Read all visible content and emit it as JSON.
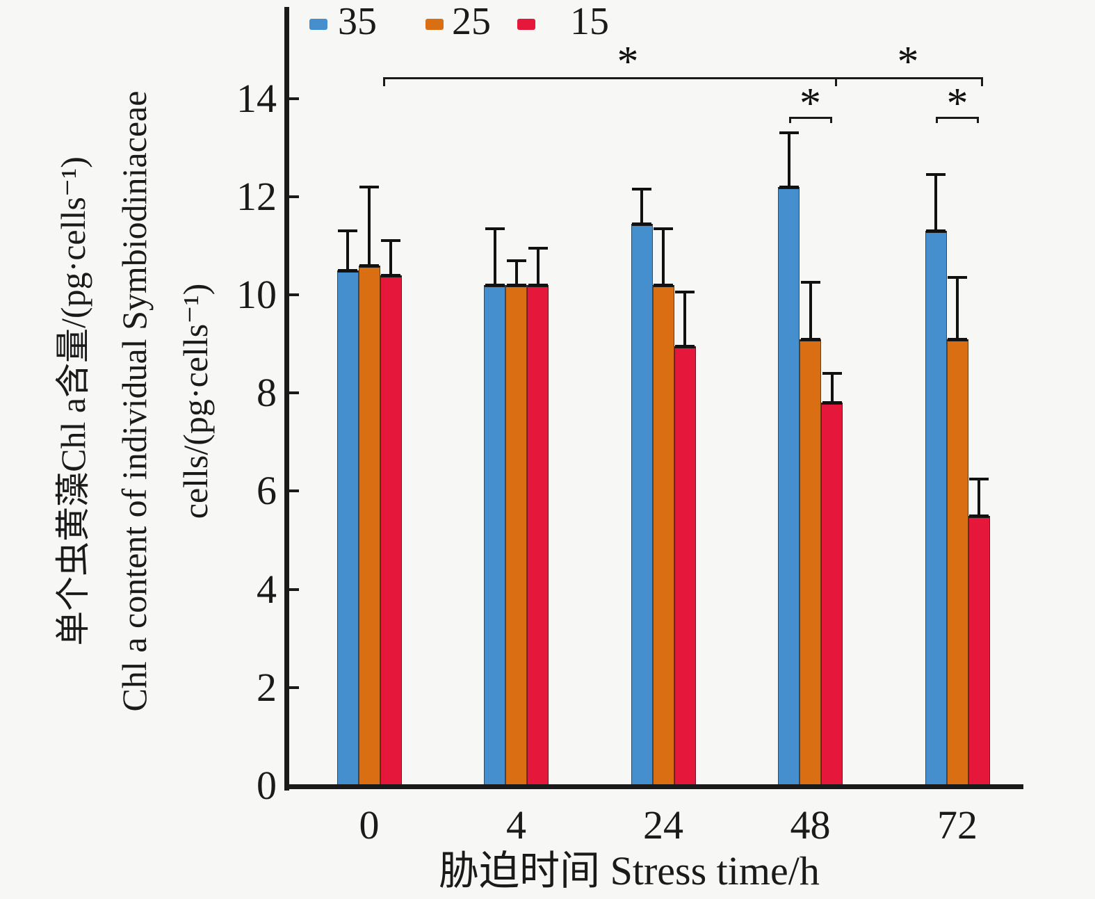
{
  "background_color": "#f7f7f5",
  "legend": {
    "items": [
      {
        "label": "35",
        "color": "#458fce"
      },
      {
        "label": "25",
        "color": "#d96f12"
      },
      {
        "label": "15",
        "color": "#e5173a"
      }
    ]
  },
  "chart_data": {
    "type": "bar",
    "title": "",
    "categories": [
      "0",
      "4",
      "24",
      "48",
      "72"
    ],
    "series": [
      {
        "name": "35",
        "color": "#458fce",
        "values": [
          10.5,
          10.2,
          11.45,
          12.2,
          11.3
        ],
        "errors_plus": [
          0.8,
          1.15,
          0.7,
          1.1,
          1.15
        ]
      },
      {
        "name": "25",
        "color": "#d96f12",
        "values": [
          10.6,
          10.2,
          10.2,
          9.1,
          9.1
        ],
        "errors_plus": [
          1.6,
          0.5,
          1.15,
          1.15,
          1.25
        ]
      },
      {
        "name": "15",
        "color": "#e5173a",
        "values": [
          10.4,
          10.2,
          8.95,
          7.8,
          5.5
        ],
        "errors_plus": [
          0.7,
          0.75,
          1.1,
          0.6,
          0.75
        ]
      }
    ],
    "xlabel": "胁迫时间 Stress time/h",
    "ylabel_lines": [
      "单个虫黄藻Chl a含量/(pg·cells⁻¹)",
      "Chl a content of individual Symbiodiniaceae",
      "cells/(pg·cells⁻¹)"
    ],
    "ylim": [
      0,
      14
    ],
    "yticks": [
      0,
      2,
      4,
      6,
      8,
      10,
      12,
      14
    ],
    "grid": false,
    "legend_position": "top",
    "significance": [
      {
        "type": "between-groups",
        "from_category": "0",
        "to_category": "48",
        "symbol": "*"
      },
      {
        "type": "between-groups",
        "from_category": "48",
        "to_category": "72",
        "symbol": "*"
      },
      {
        "type": "within-group",
        "category": "48",
        "between": [
          "35",
          "15"
        ],
        "symbol": "*"
      },
      {
        "type": "within-group",
        "category": "72",
        "between": [
          "35",
          "15"
        ],
        "symbol": "*"
      }
    ]
  }
}
